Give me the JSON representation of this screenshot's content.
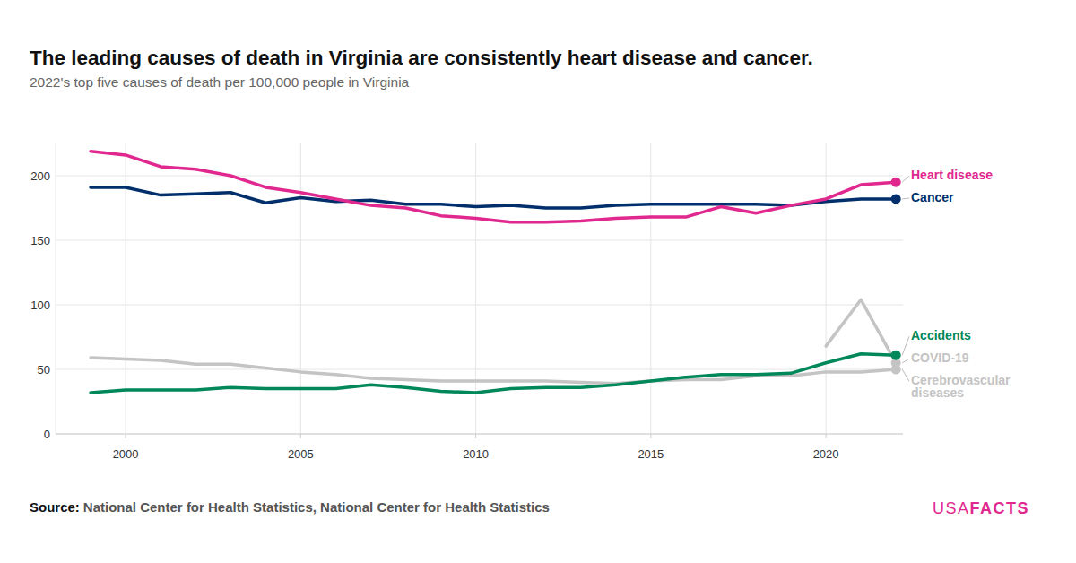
{
  "chart_data": {
    "type": "line",
    "title": "The leading causes of death in Virginia are consistently heart disease and cancer.",
    "subtitle": "2022's top five causes of death per 100,000 people in Virginia",
    "source_label": "Source:",
    "source": "National Center for Health Statistics, National Center for Health Statistics",
    "brand_parts": [
      "USA",
      "FACTS"
    ],
    "x": [
      1999,
      2000,
      2001,
      2002,
      2003,
      2004,
      2005,
      2006,
      2007,
      2008,
      2009,
      2010,
      2011,
      2012,
      2013,
      2014,
      2015,
      2016,
      2017,
      2018,
      2019,
      2020,
      2021,
      2022
    ],
    "xlim": [
      1998,
      2022.2
    ],
    "xticks": [
      2000,
      2005,
      2010,
      2015,
      2020
    ],
    "ylim": [
      0,
      225
    ],
    "yticks": [
      0,
      50,
      100,
      150,
      200
    ],
    "grid": true,
    "marker": "end-dot",
    "series": [
      {
        "name": "Heart disease",
        "color": "#e0288f",
        "values": [
          219,
          216,
          207,
          205,
          200,
          191,
          187,
          182,
          177,
          175,
          169,
          167,
          164,
          164,
          165,
          167,
          168,
          168,
          176,
          171,
          177,
          182,
          193,
          195
        ]
      },
      {
        "name": "Cancer",
        "color": "#002f6c",
        "values": [
          191,
          191,
          185,
          186,
          187,
          179,
          183,
          180,
          181,
          178,
          178,
          176,
          177,
          175,
          175,
          177,
          178,
          178,
          178,
          178,
          177,
          180,
          182,
          182
        ]
      },
      {
        "name": "Accidents",
        "color": "#00875a",
        "values": [
          32,
          34,
          34,
          34,
          36,
          35,
          35,
          35,
          38,
          36,
          33,
          32,
          35,
          36,
          36,
          38,
          41,
          44,
          46,
          46,
          47,
          55,
          62,
          61
        ]
      },
      {
        "name": "COVID-19",
        "color": "#c4c4c4",
        "values": [
          null,
          null,
          null,
          null,
          null,
          null,
          null,
          null,
          null,
          null,
          null,
          null,
          null,
          null,
          null,
          null,
          null,
          null,
          null,
          null,
          null,
          68,
          104,
          55
        ]
      },
      {
        "name": "Cerebrovascular diseases",
        "color": "#c4c4c4",
        "values": [
          59,
          58,
          57,
          54,
          54,
          51,
          48,
          46,
          43,
          42,
          41,
          41,
          41,
          41,
          40,
          39,
          41,
          42,
          42,
          45,
          45,
          48,
          48,
          50
        ]
      }
    ]
  }
}
